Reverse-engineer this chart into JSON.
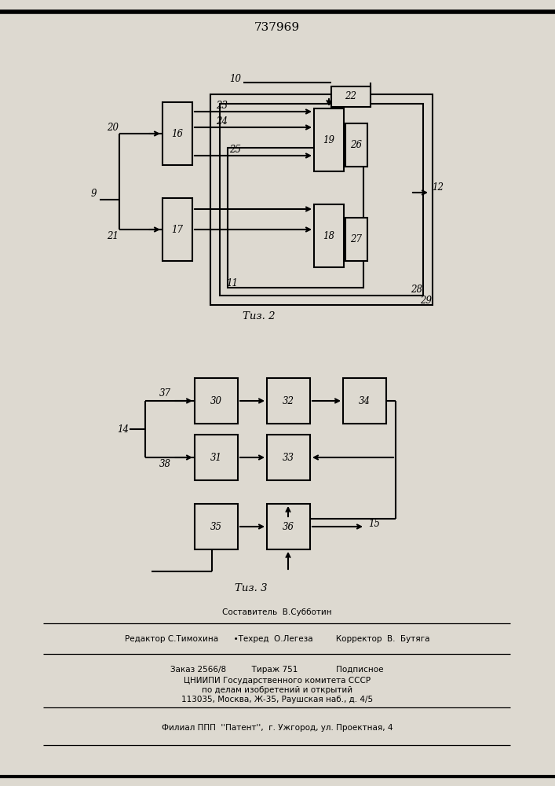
{
  "title": "737969",
  "bg_color": "#ddd9d0",
  "fig2_caption": "Τиз. 2",
  "fig3_caption": "Τиз. 3",
  "footer1": "Составитель  В.Субботин",
  "footer2": "Редактор С.Тимохина      •Техред  О.Легеза         Корректор  В.  Бутяга",
  "footer3": "Заказ 2566/8          Тираж 751               Подписное",
  "footer4": "ЦНИИПИ Государственного комитета СССР",
  "footer5": "по делам изобретений и открытий",
  "footer6": "113035, Москва, Ж-35, Раушская наб., д. 4/5",
  "footer7": "Филиал ППП  ''Патент'',  г. Ужгород, ул. Проектная, 4"
}
